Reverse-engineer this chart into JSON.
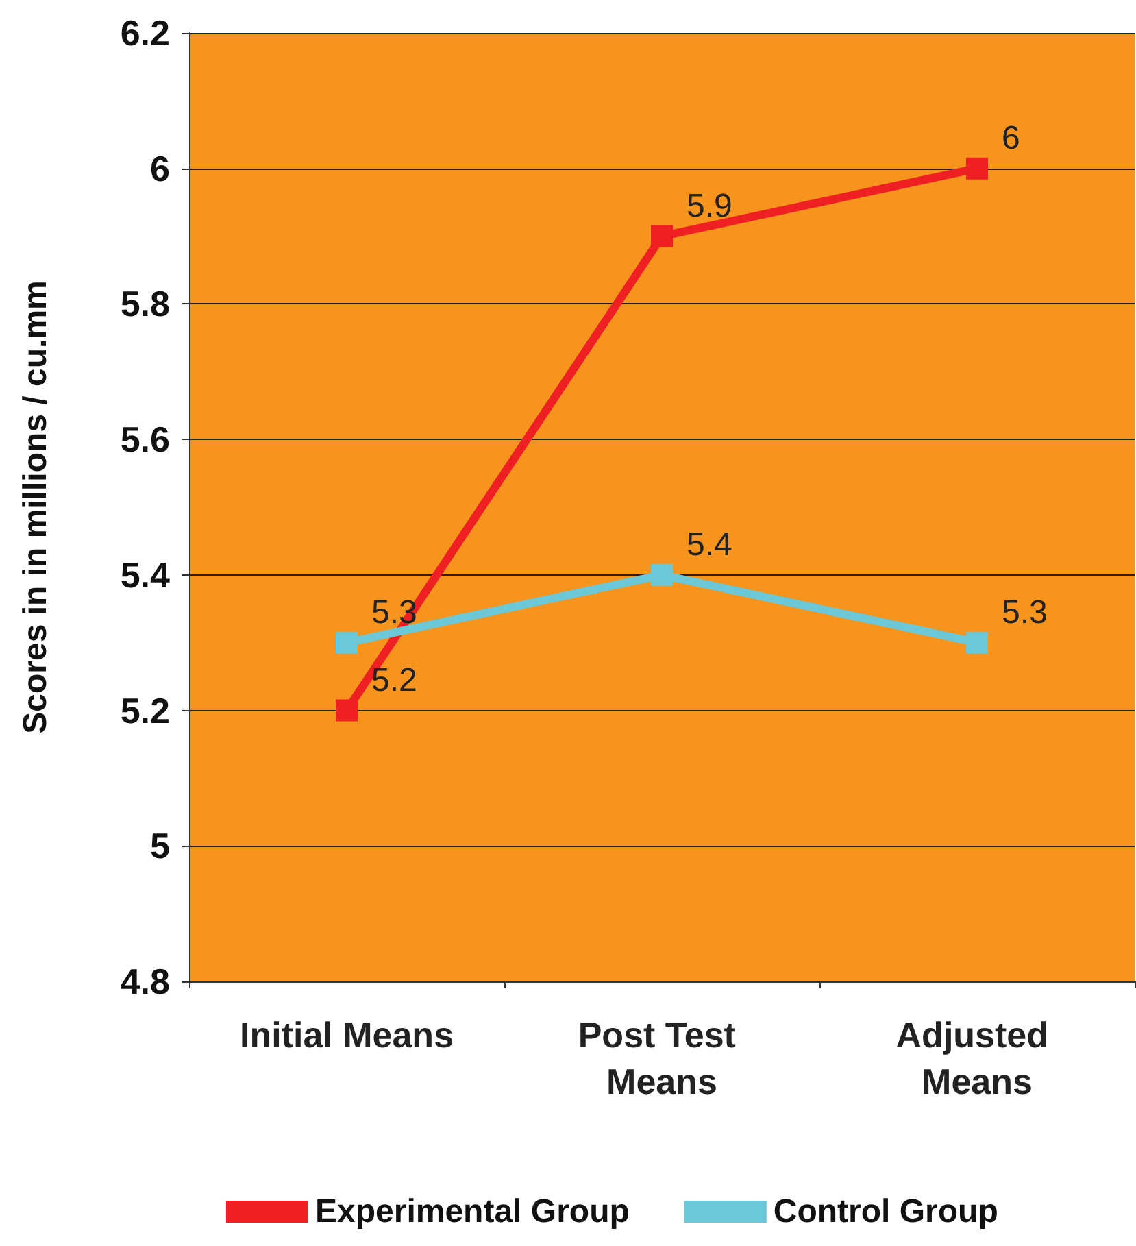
{
  "chart_data": {
    "type": "line",
    "ylabel": "Scores in in millions / cu.mm",
    "categories": [
      "Initial Means",
      "Post Test Means",
      "Adjusted Means"
    ],
    "series": [
      {
        "name": "Experimental Group",
        "color": "#ee2024",
        "values": [
          5.2,
          5.9,
          6
        ]
      },
      {
        "name": "Control Group",
        "color": "#6cc7d6",
        "values": [
          5.3,
          5.4,
          5.3
        ]
      }
    ],
    "ylim": [
      4.8,
      6.2
    ],
    "yticks": [
      4.8,
      5,
      5.2,
      5.4,
      5.6,
      5.8,
      6,
      6.2
    ],
    "grid": "y",
    "legend": "bottom",
    "marker": "square",
    "data_labels": true,
    "line_style": "solid"
  }
}
